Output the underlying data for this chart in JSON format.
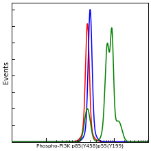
{
  "title": "Phospho-PI3K p85(Y458)p55(Y199)",
  "ylabel": "Events",
  "xlabel": "Phospho-PI3K p85(Y458)p55(Y199)",
  "background_color": "#ffffff",
  "plot_bg_color": "#ffffff",
  "blue_color": "#0000ff",
  "red_color": "#ff0000",
  "green_color": "#008000",
  "x_min": 1,
  "x_max": 10000,
  "y_min": 0,
  "y_max": 1.05,
  "blue_peaks": [
    {
      "mu_log": 2.3,
      "sigma_log": 0.055,
      "amp": 1.0
    },
    {
      "mu_log": 2.3,
      "sigma_log": 0.13,
      "amp": 0.12
    }
  ],
  "red_peaks": [
    {
      "mu_log": 2.22,
      "sigma_log": 0.055,
      "amp": 0.9
    },
    {
      "mu_log": 2.22,
      "sigma_log": 0.14,
      "amp": 0.1
    }
  ],
  "green_peaks": [
    {
      "mu_log": 2.22,
      "sigma_log": 0.085,
      "amp": 0.28
    },
    {
      "mu_log": 2.8,
      "sigma_log": 0.06,
      "amp": 0.6
    },
    {
      "mu_log": 2.94,
      "sigma_log": 0.045,
      "amp": 0.7
    },
    {
      "mu_log": 2.86,
      "sigma_log": 0.13,
      "amp": 0.25
    },
    {
      "mu_log": 3.15,
      "sigma_log": 0.09,
      "amp": 0.15
    }
  ]
}
